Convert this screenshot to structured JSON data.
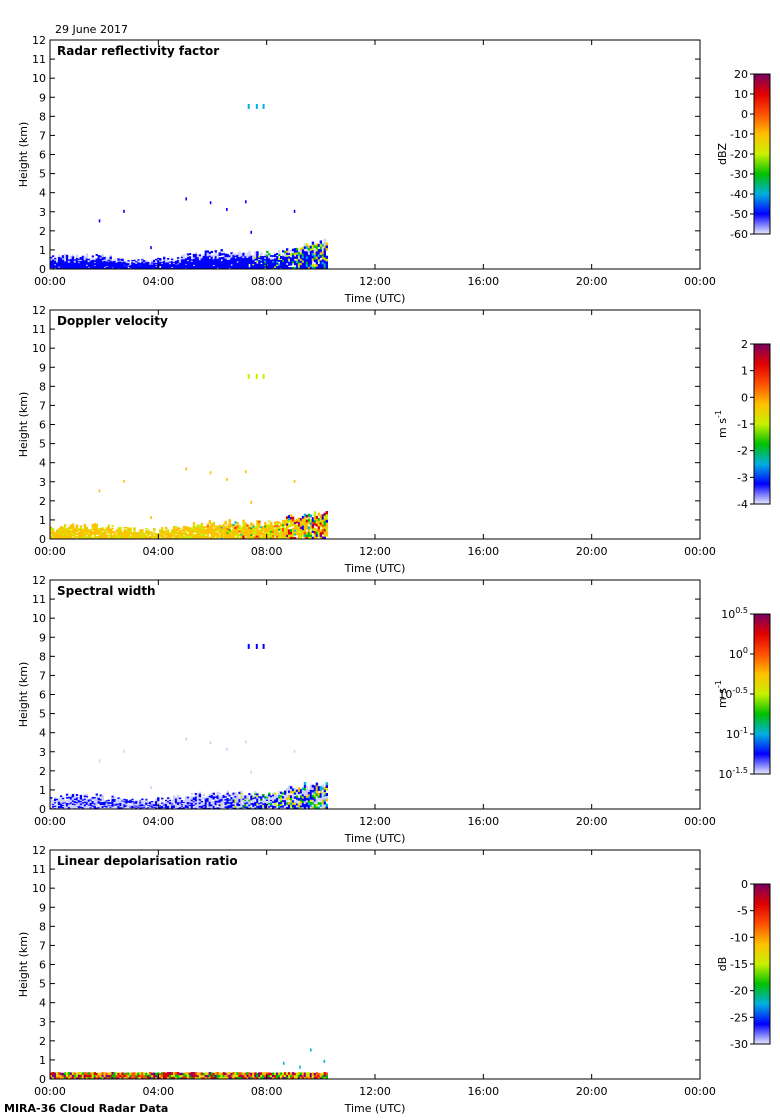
{
  "date_label": "29 June 2017",
  "footer": "MIRA-36 Cloud Radar Data",
  "colors": {
    "palette": [
      "#d0d0ff",
      "#0000ff",
      "#00b0e0",
      "#00c000",
      "#c8f000",
      "#ffc000",
      "#ff5000",
      "#e00000",
      "#800080"
    ],
    "lowest": "#e8e8ff",
    "highest": "#7a0060"
  },
  "chart_data": [
    {
      "type": "heatmap",
      "title": "Radar reflectivity factor",
      "xlabel": "Time (UTC)",
      "ylabel": "Height (km)",
      "xlim": [
        0,
        24
      ],
      "ylim": [
        0,
        12
      ],
      "xticks": [
        "00:00",
        "04:00",
        "08:00",
        "12:00",
        "16:00",
        "20:00",
        "00:00"
      ],
      "yticks": [
        "0",
        "1",
        "2",
        "3",
        "4",
        "5",
        "6",
        "7",
        "8",
        "9",
        "10",
        "11",
        "12"
      ],
      "data_extent_hours": [
        0,
        10.25
      ],
      "colorbar": {
        "unit": "dBZ",
        "min": -60,
        "max": 20,
        "ticks": [
          "20",
          "10",
          "0",
          "-10",
          "-20",
          "-30",
          "-40",
          "-50",
          "-60"
        ]
      }
    },
    {
      "type": "heatmap",
      "title": "Doppler velocity",
      "xlabel": "Time (UTC)",
      "ylabel": "Height (km)",
      "xlim": [
        0,
        24
      ],
      "ylim": [
        0,
        12
      ],
      "xticks": [
        "00:00",
        "04:00",
        "08:00",
        "12:00",
        "16:00",
        "20:00",
        "00:00"
      ],
      "yticks": [
        "0",
        "1",
        "2",
        "3",
        "4",
        "5",
        "6",
        "7",
        "8",
        "9",
        "10",
        "11",
        "12"
      ],
      "data_extent_hours": [
        0,
        10.25
      ],
      "colorbar": {
        "unit": "m s",
        "unit_sup": "-1",
        "min": -4,
        "max": 2,
        "ticks": [
          "2",
          "1",
          "0",
          "-1",
          "-2",
          "-3",
          "-4"
        ]
      }
    },
    {
      "type": "heatmap",
      "title": "Spectral width",
      "xlabel": "Time (UTC)",
      "ylabel": "Height (km)",
      "xlim": [
        0,
        24
      ],
      "ylim": [
        0,
        12
      ],
      "xticks": [
        "00:00",
        "04:00",
        "08:00",
        "12:00",
        "16:00",
        "20:00",
        "00:00"
      ],
      "yticks": [
        "0",
        "1",
        "2",
        "3",
        "4",
        "5",
        "6",
        "7",
        "8",
        "9",
        "10",
        "11",
        "12"
      ],
      "data_extent_hours": [
        0,
        10.25
      ],
      "colorbar": {
        "unit": "m s",
        "unit_sup": "-1",
        "scale": "log10",
        "min": -1.5,
        "max": 0.5,
        "ticks": [
          {
            "base": "10",
            "exp": "0.5"
          },
          {
            "base": "10",
            "exp": "0"
          },
          {
            "base": "10",
            "exp": "-0.5"
          },
          {
            "base": "10",
            "exp": "-1"
          },
          {
            "base": "10",
            "exp": "-1.5"
          }
        ]
      }
    },
    {
      "type": "heatmap",
      "title": "Linear depolarisation ratio",
      "xlabel": "Time (UTC)",
      "ylabel": "Height (km)",
      "xlim": [
        0,
        24
      ],
      "ylim": [
        0,
        12
      ],
      "xticks": [
        "00:00",
        "04:00",
        "08:00",
        "12:00",
        "16:00",
        "20:00",
        "00:00"
      ],
      "yticks": [
        "0",
        "1",
        "2",
        "3",
        "4",
        "5",
        "6",
        "7",
        "8",
        "9",
        "10",
        "11",
        "12"
      ],
      "data_extent_hours": [
        0,
        10.25
      ],
      "colorbar": {
        "unit": "dB",
        "min": -30,
        "max": 0,
        "ticks": [
          "0",
          "-5",
          "-10",
          "-15",
          "-20",
          "-25",
          "-30"
        ]
      }
    }
  ]
}
